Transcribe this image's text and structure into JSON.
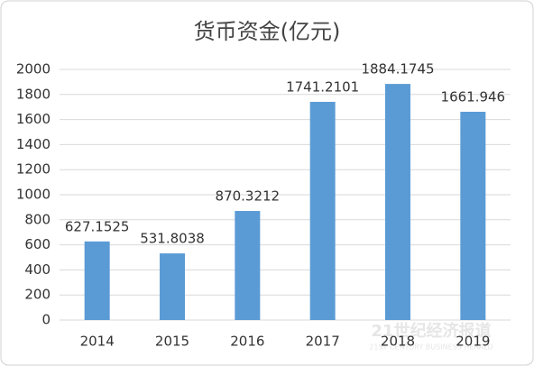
{
  "chart_data": {
    "type": "bar",
    "title": "货币资金(亿元)",
    "categories": [
      "2014",
      "2015",
      "2016",
      "2017",
      "2018",
      "2019"
    ],
    "values": [
      627.1525,
      531.8038,
      870.3212,
      1741.2101,
      1884.1745,
      1661.946
    ],
    "color": "#5b9bd5",
    "ylim": [
      0,
      2000
    ],
    "yticks": [
      0,
      200,
      400,
      600,
      800,
      1000,
      1200,
      1400,
      1600,
      1800,
      2000
    ],
    "grid": true
  },
  "watermark": {
    "text": "21世纪经济报道",
    "subtext": "21ST CENTURY BUSINESS HERALD"
  }
}
